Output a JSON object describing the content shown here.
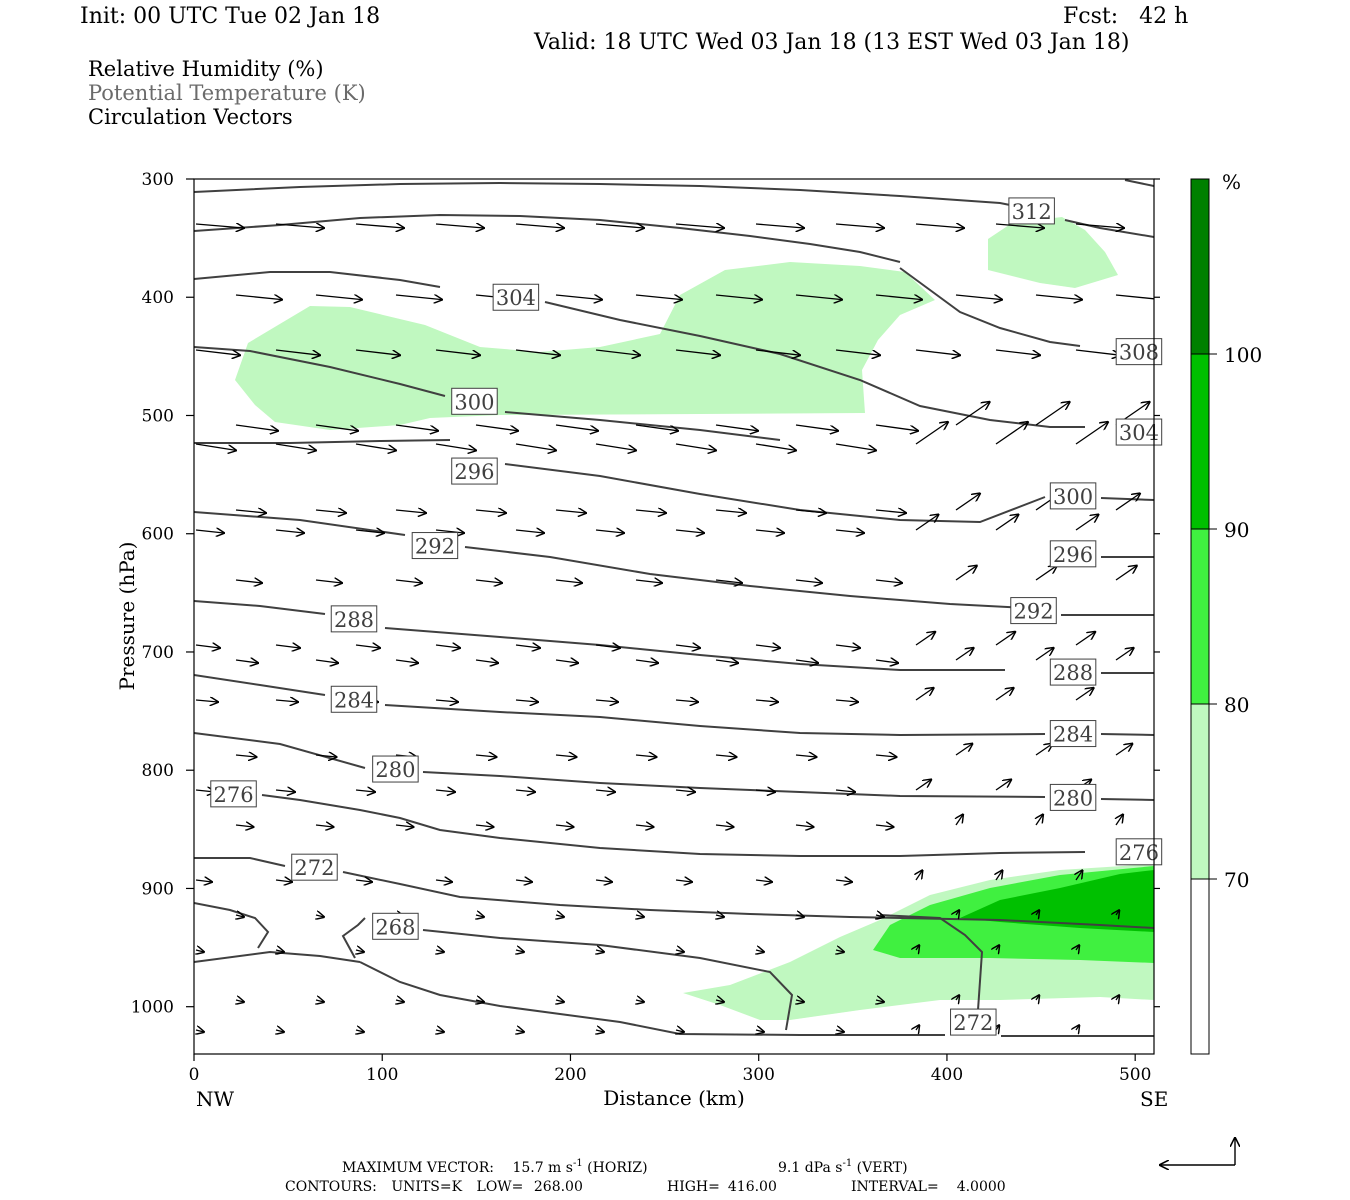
{
  "header": {
    "init": "Init: 00 UTC Tue 02 Jan 18",
    "fcst": "Fcst:   42 h",
    "valid": "Valid: 18 UTC Wed 03 Jan 18 (13 EST Wed 03 Jan 18)"
  },
  "legend": {
    "line1": "Relative Humidity (%)",
    "line2": "Potential Temperature (K)",
    "line3": "Circulation Vectors"
  },
  "footer": {
    "max_vector_label": "MAXIMUM VECTOR:",
    "horiz_value": "15.7 m s",
    "horiz_exp": "-1",
    "horiz_unit": " (HORIZ)",
    "vert_value": "9.1 dPa s",
    "vert_exp": "-1",
    "vert_unit": " (VERT)",
    "contours_label": "CONTOURS:",
    "units": "UNITS=K",
    "low_label": "LOW=",
    "low": "268.00",
    "high_label": "HIGH=",
    "high": "416.00",
    "interval_label": "INTERVAL=",
    "interval": "4.0000"
  },
  "chart_data": {
    "type": "cross-section",
    "xlabel": "Distance (km)",
    "ylabel": "Pressure (hPa)",
    "x_ticks": [
      0,
      100,
      200,
      300,
      400,
      500
    ],
    "y_ticks": [
      300,
      400,
      500,
      600,
      700,
      800,
      900,
      1000
    ],
    "xlim": [
      0,
      510
    ],
    "ylim": [
      300,
      1040
    ],
    "x_end_labels": {
      "left": "NW",
      "right": "SE"
    },
    "colorbar": {
      "unit": "%",
      "levels": [
        70,
        80,
        90,
        100
      ],
      "colors": [
        "#ffffff",
        "#c0f8c0",
        "#40f040",
        "#00c000",
        "#008000"
      ]
    },
    "contour_color": "#404040",
    "contour_labels": [
      {
        "value": "312",
        "x": 445,
        "p": 327
      },
      {
        "value": "304",
        "x": 171,
        "p": 400
      },
      {
        "value": "308",
        "x": 502,
        "p": 446
      },
      {
        "value": "300",
        "x": 149,
        "p": 488
      },
      {
        "value": "304",
        "x": 502,
        "p": 514
      },
      {
        "value": "296",
        "x": 149,
        "p": 547
      },
      {
        "value": "300",
        "x": 467,
        "p": 568
      },
      {
        "value": "292",
        "x": 128,
        "p": 610
      },
      {
        "value": "296",
        "x": 467,
        "p": 617
      },
      {
        "value": "288",
        "x": 85,
        "p": 672
      },
      {
        "value": "292",
        "x": 446,
        "p": 665
      },
      {
        "value": "284",
        "x": 85,
        "p": 740
      },
      {
        "value": "288",
        "x": 467,
        "p": 717
      },
      {
        "value": "280",
        "x": 107,
        "p": 799
      },
      {
        "value": "284",
        "x": 467,
        "p": 769
      },
      {
        "value": "276",
        "x": 21,
        "p": 820
      },
      {
        "value": "280",
        "x": 467,
        "p": 823
      },
      {
        "value": "272",
        "x": 64,
        "p": 882
      },
      {
        "value": "276",
        "x": 502,
        "p": 869
      },
      {
        "value": "268",
        "x": 107,
        "p": 932
      },
      {
        "value": "272",
        "x": 414,
        "p": 1013
      }
    ]
  }
}
